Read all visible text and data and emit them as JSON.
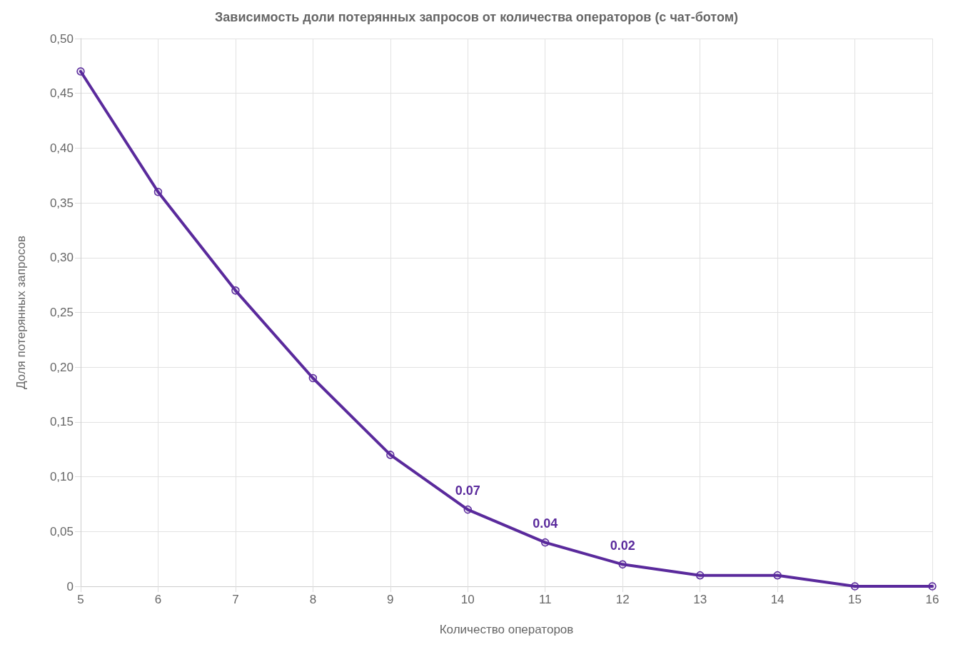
{
  "chart_data": {
    "type": "line",
    "title": "Зависимость доли потерянных запросов от количества операторов (с чат-ботом)",
    "xlabel": "Количество операторов",
    "ylabel": "Доля потерянных запросов",
    "x": [
      5,
      6,
      7,
      8,
      9,
      10,
      11,
      12,
      13,
      14,
      15,
      16
    ],
    "series": [
      {
        "color": "#5a2a9c",
        "values": [
          0.47,
          0.36,
          0.27,
          0.19,
          0.12,
          0.07,
          0.04,
          0.02,
          0.01,
          0.01,
          0,
          0
        ],
        "value_labels": [
          null,
          null,
          null,
          null,
          null,
          "0.07",
          "0.04",
          "0.02",
          null,
          null,
          null,
          null
        ]
      }
    ],
    "xlim": [
      5,
      16
    ],
    "xticks": [
      5,
      6,
      7,
      8,
      9,
      10,
      11,
      12,
      13,
      14,
      15,
      16
    ],
    "ylim": [
      0,
      0.5
    ],
    "yticks": [
      {
        "value": 0,
        "label": "0"
      },
      {
        "value": 0.05,
        "label": "0,05"
      },
      {
        "value": 0.1,
        "label": "0,10"
      },
      {
        "value": 0.15,
        "label": "0,15"
      },
      {
        "value": 0.2,
        "label": "0,20"
      },
      {
        "value": 0.25,
        "label": "0,25"
      },
      {
        "value": 0.3,
        "label": "0,30"
      },
      {
        "value": 0.35,
        "label": "0,35"
      },
      {
        "value": 0.4,
        "label": "0,40"
      },
      {
        "value": 0.45,
        "label": "0,45"
      },
      {
        "value": 0.5,
        "label": "0,50"
      }
    ],
    "grid": true,
    "marker": "circle",
    "line_style": "solid"
  }
}
